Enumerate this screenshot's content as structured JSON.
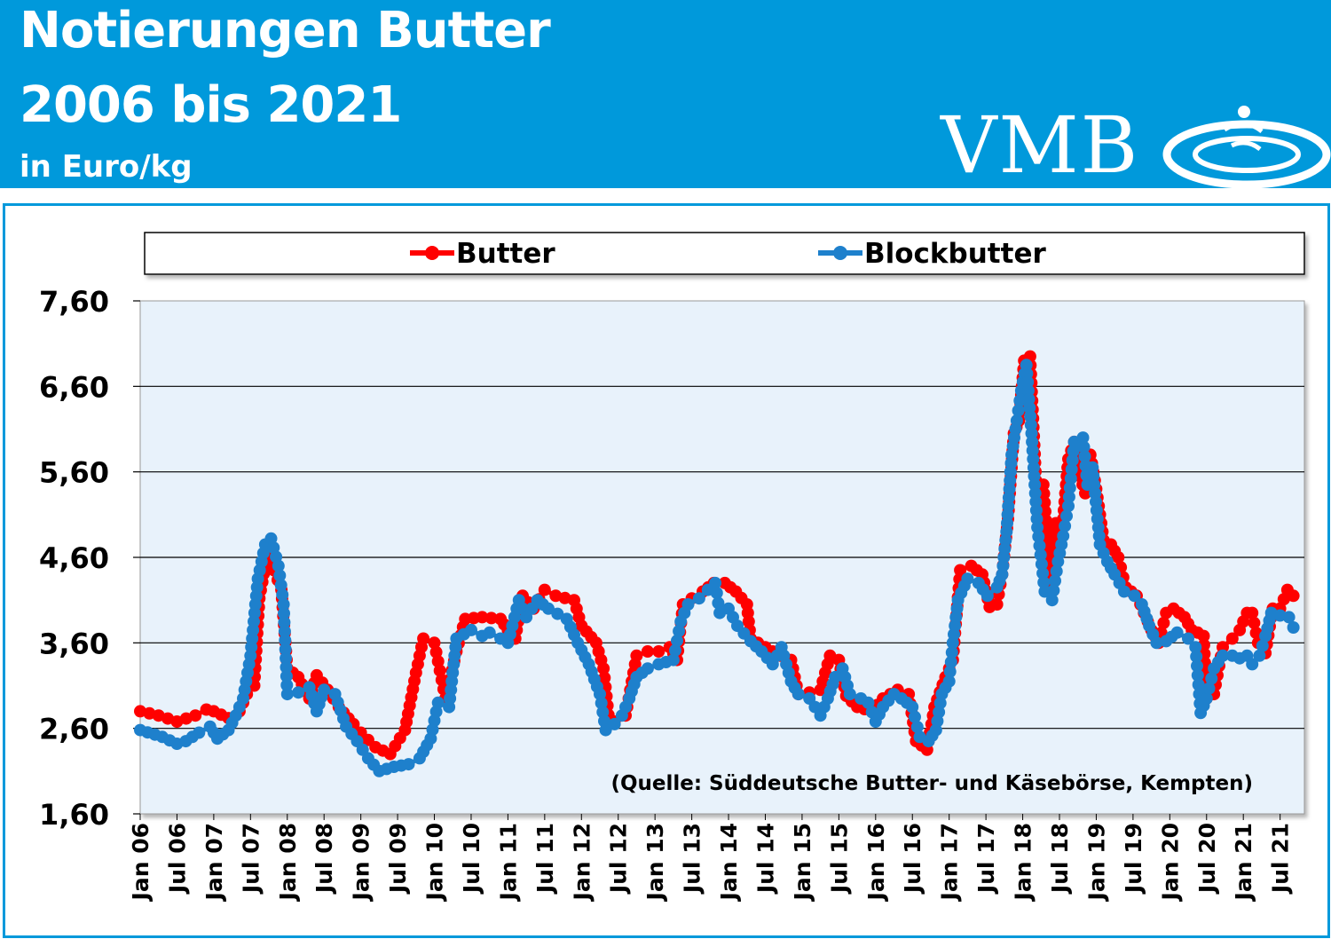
{
  "header": {
    "title_line1": "Notierungen Butter",
    "title_line2": "2006 bis 2021",
    "unit": "in Euro/kg",
    "logo_text": "VMB",
    "bg_color": "#0099db"
  },
  "chart_data": {
    "type": "line",
    "ylim": [
      1.6,
      7.6
    ],
    "yticks": [
      "7,60",
      "6,60",
      "5,60",
      "4,60",
      "3,60",
      "2,60",
      "1,60"
    ],
    "ytick_values": [
      7.6,
      6.6,
      5.6,
      4.6,
      3.6,
      2.6,
      1.6
    ],
    "xticks": [
      "Jan 06",
      "Jul 06",
      "Jan 07",
      "Jul 07",
      "Jan 08",
      "Jul 08",
      "Jan 09",
      "Jul 09",
      "Jan 10",
      "Jul 10",
      "Jan 11",
      "Jul 11",
      "Jan 12",
      "Jul 12",
      "Jan 13",
      "Jul 13",
      "Jan 14",
      "Jul 14",
      "Jan 15",
      "Jul 15",
      "Jan 16",
      "Jul 16",
      "Jan 17",
      "Jul 17",
      "Jan 18",
      "Jul 18",
      "Jan 19",
      "Jul 19",
      "Jan 20",
      "Jul 20",
      "Jan 21",
      "Jul 21"
    ],
    "legend_placement": "top",
    "grid": true,
    "annotation": "(Quelle: Süddeutsche  Butter- und Käsebörse,  Kempten)",
    "series": [
      {
        "name": "Butter",
        "color": "#ff0000",
        "anchors": [
          [
            2006.0,
            2.8
          ],
          [
            2006.25,
            2.75
          ],
          [
            2006.5,
            2.68
          ],
          [
            2006.75,
            2.75
          ],
          [
            2006.9,
            2.82
          ],
          [
            2007.0,
            2.8
          ],
          [
            2007.2,
            2.72
          ],
          [
            2007.35,
            2.8
          ],
          [
            2007.45,
            3.0
          ],
          [
            2007.55,
            3.1
          ],
          [
            2007.62,
            4.12
          ],
          [
            2007.72,
            4.6
          ],
          [
            2007.82,
            4.45
          ],
          [
            2007.92,
            4.22
          ],
          [
            2008.0,
            3.3
          ],
          [
            2008.15,
            3.2
          ],
          [
            2008.3,
            2.95
          ],
          [
            2008.4,
            3.22
          ],
          [
            2008.55,
            3.05
          ],
          [
            2008.7,
            2.85
          ],
          [
            2008.9,
            2.65
          ],
          [
            2009.0,
            2.55
          ],
          [
            2009.2,
            2.38
          ],
          [
            2009.4,
            2.3
          ],
          [
            2009.6,
            2.58
          ],
          [
            2009.75,
            3.25
          ],
          [
            2009.85,
            3.65
          ],
          [
            2010.0,
            3.6
          ],
          [
            2010.15,
            2.95
          ],
          [
            2010.3,
            3.5
          ],
          [
            2010.42,
            3.88
          ],
          [
            2010.65,
            3.9
          ],
          [
            2010.9,
            3.88
          ],
          [
            2011.0,
            3.75
          ],
          [
            2011.1,
            3.65
          ],
          [
            2011.2,
            4.15
          ],
          [
            2011.35,
            4.0
          ],
          [
            2011.5,
            4.22
          ],
          [
            2011.65,
            4.15
          ],
          [
            2011.9,
            4.1
          ],
          [
            2012.0,
            3.8
          ],
          [
            2012.2,
            3.6
          ],
          [
            2012.3,
            3.3
          ],
          [
            2012.38,
            2.65
          ],
          [
            2012.45,
            2.68
          ],
          [
            2012.6,
            2.75
          ],
          [
            2012.75,
            3.45
          ],
          [
            2012.9,
            3.5
          ],
          [
            2013.05,
            3.5
          ],
          [
            2013.2,
            3.55
          ],
          [
            2013.3,
            3.4
          ],
          [
            2013.38,
            4.05
          ],
          [
            2013.5,
            4.12
          ],
          [
            2013.65,
            4.2
          ],
          [
            2013.8,
            4.3
          ],
          [
            2013.95,
            4.3
          ],
          [
            2014.1,
            4.2
          ],
          [
            2014.25,
            4.05
          ],
          [
            2014.3,
            3.65
          ],
          [
            2014.5,
            3.55
          ],
          [
            2014.7,
            3.45
          ],
          [
            2014.85,
            3.4
          ],
          [
            2014.95,
            3.0
          ],
          [
            2015.1,
            3.02
          ],
          [
            2015.25,
            3.05
          ],
          [
            2015.38,
            3.45
          ],
          [
            2015.5,
            3.4
          ],
          [
            2015.6,
            2.98
          ],
          [
            2015.75,
            2.85
          ],
          [
            2015.95,
            2.8
          ],
          [
            2016.1,
            2.95
          ],
          [
            2016.3,
            3.05
          ],
          [
            2016.45,
            3.0
          ],
          [
            2016.55,
            2.45
          ],
          [
            2016.7,
            2.35
          ],
          [
            2016.8,
            2.85
          ],
          [
            2016.95,
            3.2
          ],
          [
            2017.05,
            3.4
          ],
          [
            2017.15,
            4.45
          ],
          [
            2017.3,
            4.5
          ],
          [
            2017.45,
            4.4
          ],
          [
            2017.55,
            4.02
          ],
          [
            2017.65,
            4.05
          ],
          [
            2017.72,
            4.4
          ],
          [
            2017.8,
            5.05
          ],
          [
            2017.88,
            6.05
          ],
          [
            2017.95,
            6.2
          ],
          [
            2018.02,
            6.9
          ],
          [
            2018.1,
            6.95
          ],
          [
            2018.18,
            5.5
          ],
          [
            2018.28,
            5.45
          ],
          [
            2018.38,
            4.3
          ],
          [
            2018.45,
            5.0
          ],
          [
            2018.55,
            5.05
          ],
          [
            2018.62,
            5.75
          ],
          [
            2018.7,
            5.95
          ],
          [
            2018.78,
            5.55
          ],
          [
            2018.85,
            5.35
          ],
          [
            2018.92,
            5.8
          ],
          [
            2019.0,
            5.4
          ],
          [
            2019.1,
            4.8
          ],
          [
            2019.2,
            4.75
          ],
          [
            2019.3,
            4.6
          ],
          [
            2019.4,
            4.25
          ],
          [
            2019.55,
            4.15
          ],
          [
            2019.65,
            3.95
          ],
          [
            2019.75,
            3.75
          ],
          [
            2019.85,
            3.6
          ],
          [
            2019.95,
            3.95
          ],
          [
            2020.05,
            4.0
          ],
          [
            2020.2,
            3.9
          ],
          [
            2020.3,
            3.75
          ],
          [
            2020.38,
            3.72
          ],
          [
            2020.46,
            3.68
          ],
          [
            2020.5,
            2.95
          ],
          [
            2020.6,
            3.0
          ],
          [
            2020.72,
            3.55
          ],
          [
            2020.85,
            3.65
          ],
          [
            2020.95,
            3.75
          ],
          [
            2021.05,
            3.95
          ],
          [
            2021.12,
            3.95
          ],
          [
            2021.2,
            3.6
          ],
          [
            2021.3,
            3.48
          ],
          [
            2021.4,
            4.0
          ],
          [
            2021.5,
            4.0
          ],
          [
            2021.6,
            4.22
          ],
          [
            2021.68,
            4.15
          ]
        ]
      },
      {
        "name": "Blockbutter",
        "color": "#1e80cc",
        "anchors": [
          [
            2006.0,
            2.58
          ],
          [
            2006.3,
            2.5
          ],
          [
            2006.5,
            2.42
          ],
          [
            2006.62,
            2.45
          ],
          [
            2006.8,
            2.55
          ],
          [
            2006.95,
            2.62
          ],
          [
            2007.05,
            2.48
          ],
          [
            2007.2,
            2.58
          ],
          [
            2007.3,
            2.75
          ],
          [
            2007.4,
            2.95
          ],
          [
            2007.5,
            3.45
          ],
          [
            2007.6,
            4.35
          ],
          [
            2007.7,
            4.75
          ],
          [
            2007.78,
            4.82
          ],
          [
            2007.88,
            4.5
          ],
          [
            2007.95,
            4.05
          ],
          [
            2008.0,
            3.0
          ],
          [
            2008.15,
            3.02
          ],
          [
            2008.3,
            3.08
          ],
          [
            2008.4,
            2.8
          ],
          [
            2008.5,
            3.05
          ],
          [
            2008.65,
            3.0
          ],
          [
            2008.8,
            2.62
          ],
          [
            2008.95,
            2.45
          ],
          [
            2009.1,
            2.25
          ],
          [
            2009.25,
            2.1
          ],
          [
            2009.45,
            2.15
          ],
          [
            2009.65,
            2.18
          ],
          [
            2009.8,
            2.25
          ],
          [
            2009.95,
            2.48
          ],
          [
            2010.05,
            2.9
          ],
          [
            2010.2,
            2.85
          ],
          [
            2010.3,
            3.65
          ],
          [
            2010.5,
            3.75
          ],
          [
            2010.65,
            3.68
          ],
          [
            2010.75,
            3.72
          ],
          [
            2010.9,
            3.65
          ],
          [
            2011.0,
            3.6
          ],
          [
            2011.15,
            4.1
          ],
          [
            2011.25,
            3.9
          ],
          [
            2011.4,
            4.1
          ],
          [
            2011.55,
            4.0
          ],
          [
            2011.8,
            3.88
          ],
          [
            2011.95,
            3.6
          ],
          [
            2012.1,
            3.35
          ],
          [
            2012.25,
            3.0
          ],
          [
            2012.33,
            2.58
          ],
          [
            2012.45,
            2.65
          ],
          [
            2012.55,
            2.75
          ],
          [
            2012.65,
            2.95
          ],
          [
            2012.75,
            3.2
          ],
          [
            2012.9,
            3.3
          ],
          [
            2013.05,
            3.35
          ],
          [
            2013.25,
            3.4
          ],
          [
            2013.35,
            3.85
          ],
          [
            2013.45,
            4.05
          ],
          [
            2013.6,
            4.12
          ],
          [
            2013.72,
            4.22
          ],
          [
            2013.82,
            4.3
          ],
          [
            2013.88,
            3.95
          ],
          [
            2014.0,
            4.0
          ],
          [
            2014.12,
            3.8
          ],
          [
            2014.3,
            3.62
          ],
          [
            2014.45,
            3.5
          ],
          [
            2014.6,
            3.35
          ],
          [
            2014.72,
            3.55
          ],
          [
            2014.85,
            3.15
          ],
          [
            2014.95,
            3.0
          ],
          [
            2015.1,
            2.95
          ],
          [
            2015.25,
            2.75
          ],
          [
            2015.35,
            2.95
          ],
          [
            2015.45,
            3.2
          ],
          [
            2015.55,
            3.3
          ],
          [
            2015.65,
            3.0
          ],
          [
            2015.8,
            2.95
          ],
          [
            2015.9,
            2.9
          ],
          [
            2016.0,
            2.68
          ],
          [
            2016.1,
            2.85
          ],
          [
            2016.25,
            3.0
          ],
          [
            2016.35,
            2.95
          ],
          [
            2016.5,
            2.85
          ],
          [
            2016.6,
            2.5
          ],
          [
            2016.72,
            2.45
          ],
          [
            2016.82,
            2.58
          ],
          [
            2016.9,
            3.0
          ],
          [
            2017.0,
            3.15
          ],
          [
            2017.05,
            3.6
          ],
          [
            2017.12,
            4.1
          ],
          [
            2017.25,
            4.35
          ],
          [
            2017.4,
            4.3
          ],
          [
            2017.52,
            4.15
          ],
          [
            2017.65,
            4.25
          ],
          [
            2017.72,
            4.4
          ],
          [
            2017.78,
            4.9
          ],
          [
            2017.85,
            5.8
          ],
          [
            2017.92,
            6.2
          ],
          [
            2017.98,
            6.55
          ],
          [
            2018.05,
            6.85
          ],
          [
            2018.12,
            6.05
          ],
          [
            2018.2,
            4.95
          ],
          [
            2018.3,
            4.2
          ],
          [
            2018.4,
            4.1
          ],
          [
            2018.48,
            4.55
          ],
          [
            2018.55,
            4.85
          ],
          [
            2018.62,
            5.2
          ],
          [
            2018.7,
            5.95
          ],
          [
            2018.82,
            6.0
          ],
          [
            2018.88,
            5.45
          ],
          [
            2018.95,
            5.65
          ],
          [
            2019.05,
            4.75
          ],
          [
            2019.15,
            4.55
          ],
          [
            2019.25,
            4.4
          ],
          [
            2019.38,
            4.2
          ],
          [
            2019.52,
            4.15
          ],
          [
            2019.62,
            4.05
          ],
          [
            2019.72,
            3.8
          ],
          [
            2019.82,
            3.6
          ],
          [
            2019.95,
            3.62
          ],
          [
            2020.1,
            3.72
          ],
          [
            2020.25,
            3.65
          ],
          [
            2020.35,
            3.55
          ],
          [
            2020.42,
            2.78
          ],
          [
            2020.5,
            2.95
          ],
          [
            2020.6,
            3.3
          ],
          [
            2020.72,
            3.45
          ],
          [
            2020.85,
            3.45
          ],
          [
            2020.95,
            3.42
          ],
          [
            2021.05,
            3.45
          ],
          [
            2021.12,
            3.35
          ],
          [
            2021.22,
            3.45
          ],
          [
            2021.3,
            3.68
          ],
          [
            2021.38,
            3.95
          ],
          [
            2021.5,
            3.92
          ],
          [
            2021.62,
            3.9
          ],
          [
            2021.68,
            3.78
          ]
        ]
      }
    ]
  }
}
